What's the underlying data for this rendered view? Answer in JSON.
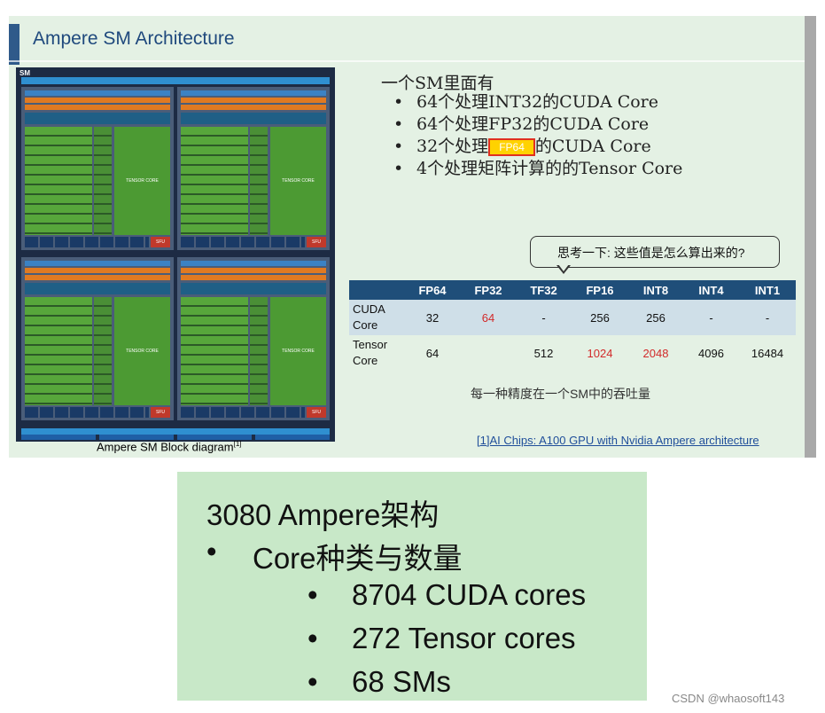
{
  "slide1": {
    "title": "Ampere SM Architecture",
    "diagram": {
      "sm_label": "SM",
      "tensor_label": "TENSOR CORE",
      "sfu_label": "SFU",
      "caption": "Ampere SM Block diagram",
      "caption_ref": "[1]"
    },
    "intro": "一个SM里面有",
    "bullets": [
      {
        "before": "64个处理INT32的CUDA Core"
      },
      {
        "before": "64个处理FP32的CUDA Core"
      },
      {
        "before": "32个处理",
        "highlight": "FP64",
        "after": "的CUDA Core"
      },
      {
        "before": "4个处理矩阵计算的的Tensor Core"
      }
    ],
    "callout": "思考一下: 这些值是怎么算出来的?",
    "table": {
      "headers": [
        "",
        "FP64",
        "FP32",
        "TF32",
        "FP16",
        "INT8",
        "INT4",
        "INT1"
      ],
      "rows": [
        {
          "label": "CUDA Core",
          "cells": [
            "32",
            "64",
            "-",
            "256",
            "256",
            "-",
            "-"
          ],
          "red": [
            1
          ]
        },
        {
          "label": "Tensor Core",
          "cells": [
            "64",
            "",
            "512",
            "1024",
            "2048",
            "4096",
            "16484"
          ],
          "red": [
            3,
            4
          ]
        }
      ]
    },
    "table_note": "每一种精度在一个SM中的吞吐量",
    "reference": "[1]AI Chips: A100 GPU with Nvidia Ampere architecture"
  },
  "slide2": {
    "title": "3080 Ampere架构",
    "bullet": "Core种类与数量",
    "sub_bullets": [
      "8704 CUDA cores",
      "272 Tensor cores",
      "68 SMs"
    ]
  },
  "bullet_char": "•",
  "watermark": "CSDN @whaosoft143",
  "colors": {
    "slide_bg": "#e4f1e4",
    "slide2_bg": "#c8e8c8",
    "title_blue": "#1f497d",
    "table_header": "#1f4e79",
    "red_value": "#d22a2a",
    "highlight_yellow": "#ffd200"
  }
}
